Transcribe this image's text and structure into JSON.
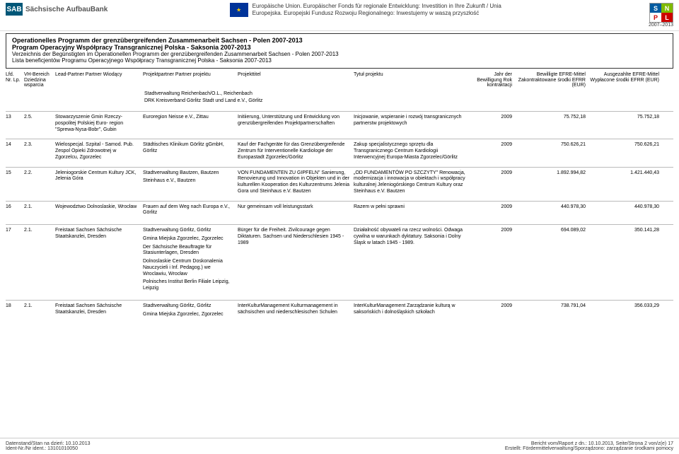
{
  "header": {
    "sab_mark": "SAB",
    "sab_text": "Sächsische AufbauBank",
    "eu_text": "Europäische Union. Europäischer Fonds für regionale Entwicklung: Investition in Ihre Zukunft / Unia Europejska. Europejski Fundusz Rozwoju Regionalnego: Inwestujemy w waszą przyszłość",
    "snpl_years": "2007–2013"
  },
  "program": {
    "title_de": "Operationelles Programm der grenzübergreifenden Zusammenarbeit Sachsen - Polen 2007-2013",
    "title_pl": "Program Operacyjny Współpracy Transgranicznej Polska - Saksonia 2007-2013",
    "sub_de": "Verzeichnis der Begünstigten im Operationellen Programm der grenzübergreifenden Zusammenarbeit Sachsen - Polen 2007-2013",
    "sub_pl": "Lista beneficjentów Programu Operacyjnego Współpracy Transgranicznej Polska - Saksonia 2007-2013"
  },
  "columns": {
    "c1": "Lfd. Nr.\nLp.",
    "c2": "VH-Bereich\nDziedzina\nwsparcia",
    "c3": "Lead-Partner\nPartner Wiodący",
    "c4": "Projektpartner\nPartner projektu",
    "c5": "Projekttitel",
    "c6": "Tytuł projektu",
    "c7": "Jahr der Bewilligung\nRok kontraktacji",
    "c8": "Bewilligte EFRE-Mittel\nZakontraktowane środki EFRR\n(EUR)",
    "c9": "Ausgezahlte EFRE-Mittel\nWypłacone środki EFRR\n(EUR)"
  },
  "orphan_partners": [
    "Stadtverwaltung Reichenbach/O.L., Reichenbach",
    "DRK Kreisverband Görlitz Stadt und Land e.V., Görlitz"
  ],
  "rows": [
    {
      "nr": "13",
      "vh": "2.5.",
      "lead": "Stowarzyszenie Gmin Rzeczy- pospolitej Polskiej Euro- region \"Sprewa-Nysa-Bobr\", Gubin",
      "partners": [
        "Euroregion Neisse e.V., Zittau"
      ],
      "title_de": "Initiierung, Unterstützung und Entwicklung von grenzübergreifenden Projektpartnerschaften",
      "title_pl": "Inicjowanie, wspieranie i rozwój transgranicznych partnerstw projektowych",
      "year": "2009",
      "bew": "75.752,18",
      "aus": "75.752,18"
    },
    {
      "nr": "14",
      "vh": "2.3.",
      "lead": "Wielospecjal. Szpital - Samod. Pub. Zespol Opieki Zdrowotnej w Zgorzelcu, Zgorzelec",
      "partners": [
        "Städtisches Klinikum Görlitz gGmbH, Görlitz"
      ],
      "title_de": "Kauf der Fachgeräte für das Grenzübergreifende Zentrum für Interventionelle Kardiologie der Europastadt Zgorzelec/Görlitz",
      "title_pl": "Zakup specjalistycznego sprzętu dla Transgranicznego Centrum Kardiologii Interwencyjnej Europa-Miasta Zgorzelec/Görlitz",
      "year": "2009",
      "bew": "750.626,21",
      "aus": "750.626,21"
    },
    {
      "nr": "15",
      "vh": "2.2.",
      "lead": "Jeleniogorskie Centrum Kultury JCK, Jelenia Góra",
      "partners": [
        "Stadtverwaltung Bautzen, Bautzen",
        "Steinhaus e.V., Bautzen"
      ],
      "title_de": "VON FUNDAMENTEN ZU GIPFELN\" Sanierung, Renovierung und Innovation in Objekten und in der kulturellen Kooperation des Kulturzentrums Jelenia Gora und Steinhaus e.V. Bautzen",
      "title_pl": "„OD FUNDAMENTÓW PO SZCZYTY\" Renowacja, modernizacja i innowacja w obiektach i współpracy kulturalnej Jeleniogórskiego Centrum Kultury oraz Steinhaus e.V. Bautzen",
      "year": "2009",
      "bew": "1.892.994,82",
      "aus": "1.421.440,43"
    },
    {
      "nr": "16",
      "vh": "2.1.",
      "lead": "Wojewodztwo Dolnoslaskie, Wrocław",
      "partners": [
        "Frauen auf dem Weg nach Europa e.V., Görlitz"
      ],
      "title_de": "Nur gemeinsam voll leistungsstark",
      "title_pl": "Razem w pełni sprawni",
      "year": "2009",
      "bew": "440.978,30",
      "aus": "440.978,30"
    },
    {
      "nr": "17",
      "vh": "2.1.",
      "lead": "Freistaat Sachsen Sächsische Staatskanzlei, Dresden",
      "partners": [
        "Stadtverwaltung Görlitz, Görlitz",
        "Gmina Miejska Zgorzelec, Zgorzelec",
        "Der Sächsische Beauftragte für Stasiunterlagen, Dresden",
        "Dolnoslaskie Centrum Doskonalenia Nauczycieli i Inf. Pedagog.) we Wroclawiu, Wrocław",
        "Polnisches Institut Berlin Filiale Leipzig, Leipzig"
      ],
      "title_de": "Bürger für die Freiheit. Zivilcourage gegen Diktaturen. Sachsen und Niederschlesien 1945 - 1989",
      "title_pl": "Działalność obywateli na rzecz wolności. Odwaga cywilna w warunkach dyktatury. Saksonia i Dolny Śląsk w latach 1945 - 1989.",
      "year": "2009",
      "bew": "694.089,02",
      "aus": "350.141,28"
    },
    {
      "nr": "18",
      "vh": "2.1.",
      "lead": "Freistaat Sachsen Sächsische Staatskanzlei, Dresden",
      "partners": [
        "Stadtverwaltung Görlitz, Görlitz",
        "Gmina Miejska Zgorzelec, Zgorzelec"
      ],
      "title_de": "InterKulturManagement Kulturmanagement in sächsischen und niederschlesischen Schulen",
      "title_pl": "InterKulturManagement Zarządzanie kulturą w saksońskich i dolnośląskich szkołach",
      "year": "2009",
      "bew": "738.791,04",
      "aus": "356.033,29"
    }
  ],
  "footer": {
    "left1": "Datenstand/Stan na dzień: 10.10.2013",
    "left2": "Ident-Nr./Nr ident.: 13101010050",
    "right1": "Bericht vom/Raport z dn.: 10.10.2013, Seite/Strona 2 von/z(e) 17",
    "right2": "Erstellt: Fördermittelverwaltung/Sporządzono: zarządzanie środkami pomocy"
  }
}
